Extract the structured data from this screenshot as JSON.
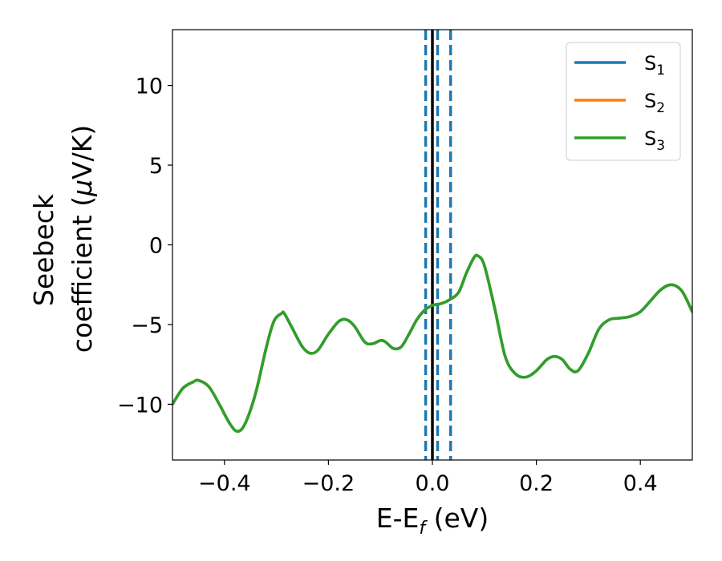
{
  "chart_data": {
    "type": "line",
    "title": "",
    "xlabel": {
      "main": "E-E",
      "sub": "f",
      "tail": " (eV)"
    },
    "ylabel": {
      "line1": "Seebeck",
      "line2": "coefficient  (",
      "mu": "μ",
      "tail": "V/K)"
    },
    "xlim": [
      -0.5,
      0.5
    ],
    "ylim": [
      -13.5,
      13.5
    ],
    "xticks": [
      -0.4,
      -0.2,
      0.0,
      0.2,
      0.4
    ],
    "xtick_labels": [
      "−0.4",
      "−0.2",
      "0.0",
      "0.2",
      "0.4"
    ],
    "yticks": [
      -10,
      -5,
      0,
      5,
      10
    ],
    "ytick_labels": [
      "−10",
      "−5",
      "0",
      "5",
      "10"
    ],
    "grid": false,
    "legend_position": "top-right",
    "legend": [
      {
        "main": "S",
        "sub": "1",
        "color": "#1f77b4"
      },
      {
        "main": "S",
        "sub": "2",
        "color": "#ff7f0e"
      },
      {
        "main": "S",
        "sub": "3",
        "color": "#2ca02c"
      }
    ],
    "x": [
      -0.5,
      -0.48,
      -0.46,
      -0.45,
      -0.43,
      -0.41,
      -0.39,
      -0.375,
      -0.36,
      -0.34,
      -0.32,
      -0.305,
      -0.29,
      -0.285,
      -0.27,
      -0.25,
      -0.235,
      -0.22,
      -0.2,
      -0.18,
      -0.165,
      -0.15,
      -0.13,
      -0.115,
      -0.1,
      -0.09,
      -0.075,
      -0.06,
      -0.045,
      -0.03,
      -0.015,
      0.0,
      0.015,
      0.03,
      0.05,
      0.065,
      0.08,
      0.088,
      0.1,
      0.12,
      0.14,
      0.16,
      0.18,
      0.2,
      0.22,
      0.235,
      0.25,
      0.265,
      0.28,
      0.3,
      0.32,
      0.34,
      0.36,
      0.38,
      0.4,
      0.42,
      0.44,
      0.46,
      0.48,
      0.5
    ],
    "series": [
      {
        "name": "S1",
        "color": "#1f77b4",
        "values": [
          -10.0,
          -9.0,
          -8.6,
          -8.5,
          -8.9,
          -10.0,
          -11.2,
          -11.7,
          -11.2,
          -9.3,
          -6.5,
          -4.8,
          -4.3,
          -4.3,
          -5.2,
          -6.4,
          -6.8,
          -6.6,
          -5.6,
          -4.8,
          -4.7,
          -5.1,
          -6.1,
          -6.2,
          -6.0,
          -6.1,
          -6.5,
          -6.4,
          -5.6,
          -4.7,
          -4.1,
          -3.8,
          -3.7,
          -3.5,
          -3.0,
          -1.8,
          -0.8,
          -0.7,
          -1.3,
          -4.0,
          -7.0,
          -8.1,
          -8.3,
          -7.9,
          -7.2,
          -7.0,
          -7.2,
          -7.8,
          -7.9,
          -6.8,
          -5.3,
          -4.7,
          -4.6,
          -4.5,
          -4.2,
          -3.5,
          -2.8,
          -2.5,
          -2.9,
          -4.2
        ]
      },
      {
        "name": "S2",
        "color": "#ff7f0e",
        "values": [
          -10.0,
          -9.0,
          -8.6,
          -8.5,
          -8.9,
          -10.0,
          -11.2,
          -11.7,
          -11.2,
          -9.3,
          -6.5,
          -4.8,
          -4.3,
          -4.3,
          -5.2,
          -6.4,
          -6.8,
          -6.6,
          -5.6,
          -4.8,
          -4.7,
          -5.1,
          -6.1,
          -6.2,
          -6.0,
          -6.1,
          -6.5,
          -6.4,
          -5.6,
          -4.7,
          -4.1,
          -3.8,
          -3.7,
          -3.5,
          -3.0,
          -1.8,
          -0.8,
          -0.7,
          -1.3,
          -4.0,
          -7.0,
          -8.1,
          -8.3,
          -7.9,
          -7.2,
          -7.0,
          -7.2,
          -7.8,
          -7.9,
          -6.8,
          -5.3,
          -4.7,
          -4.6,
          -4.5,
          -4.2,
          -3.5,
          -2.8,
          -2.5,
          -2.9,
          -4.2
        ]
      },
      {
        "name": "S3",
        "color": "#2ca02c",
        "values": [
          -10.0,
          -9.0,
          -8.6,
          -8.5,
          -8.9,
          -10.0,
          -11.2,
          -11.7,
          -11.2,
          -9.3,
          -6.5,
          -4.8,
          -4.3,
          -4.3,
          -5.2,
          -6.4,
          -6.8,
          -6.6,
          -5.6,
          -4.8,
          -4.7,
          -5.1,
          -6.1,
          -6.2,
          -6.0,
          -6.1,
          -6.5,
          -6.4,
          -5.6,
          -4.7,
          -4.1,
          -3.8,
          -3.7,
          -3.5,
          -3.0,
          -1.8,
          -0.8,
          -0.7,
          -1.3,
          -4.0,
          -7.0,
          -8.1,
          -8.3,
          -7.9,
          -7.2,
          -7.0,
          -7.2,
          -7.8,
          -7.9,
          -6.8,
          -5.3,
          -4.7,
          -4.6,
          -4.5,
          -4.2,
          -3.5,
          -2.8,
          -2.5,
          -2.9,
          -4.2
        ]
      }
    ],
    "vlines": [
      {
        "x": 0.0,
        "style": "solid",
        "color": "#000000"
      },
      {
        "x": -0.013,
        "style": "dashed",
        "color": "#1f77b4"
      },
      {
        "x": 0.01,
        "style": "dashed",
        "color": "#1f77b4"
      },
      {
        "x": 0.035,
        "style": "dashed",
        "color": "#1f77b4"
      }
    ]
  }
}
